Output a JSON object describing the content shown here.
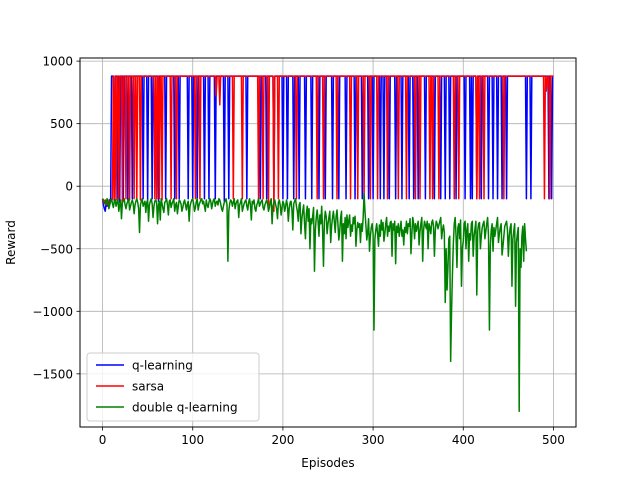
{
  "chart_data": {
    "type": "line",
    "title": "",
    "xlabel": "Episodes",
    "ylabel": "Reward",
    "xlim": [
      -25,
      525
    ],
    "ylim": [
      -1925,
      1025
    ],
    "xticks": [
      0,
      100,
      200,
      300,
      400,
      500
    ],
    "yticks": [
      -1500,
      -1000,
      -500,
      0,
      500,
      1000
    ],
    "xtick_labels": [
      "0",
      "100",
      "200",
      "300",
      "400",
      "500"
    ],
    "ytick_labels": [
      "−1500",
      "−1000",
      "−500",
      "0",
      "500",
      "1000"
    ],
    "grid": true,
    "legend_position": "lower-left",
    "series": [
      {
        "name": "q-learning",
        "color": "#0000ff",
        "base": 880,
        "low": -100,
        "episodes": 500,
        "start": [
          [
            0,
            -100
          ],
          [
            1,
            -150
          ],
          [
            2,
            -180
          ],
          [
            3,
            -200
          ],
          [
            4,
            -130
          ],
          [
            5,
            -160
          ],
          [
            6,
            -120
          ],
          [
            7,
            -140
          ],
          [
            8,
            -110
          ],
          [
            9,
            -100
          ]
        ],
        "dips": [
          [
            13,
            -120
          ],
          [
            17,
            -100
          ],
          [
            19,
            -130
          ],
          [
            23,
            -100
          ],
          [
            28,
            -110
          ],
          [
            33,
            -100
          ],
          [
            45,
            -100
          ],
          [
            50,
            -110
          ],
          [
            55,
            -100
          ],
          [
            62,
            -120
          ],
          [
            70,
            -100
          ],
          [
            80,
            -100
          ],
          [
            85,
            -100
          ],
          [
            95,
            -100
          ],
          [
            100,
            -100
          ],
          [
            105,
            -110
          ],
          [
            113,
            -100
          ],
          [
            118,
            -100
          ],
          [
            125,
            -100
          ],
          [
            135,
            -120
          ],
          [
            140,
            -100
          ],
          [
            160,
            -100
          ],
          [
            175,
            -100
          ],
          [
            182,
            -100
          ],
          [
            190,
            -100
          ],
          [
            200,
            -100
          ],
          [
            205,
            -100
          ],
          [
            212,
            -100
          ],
          [
            218,
            -100
          ],
          [
            225,
            -100
          ],
          [
            232,
            -100
          ],
          [
            240,
            -100
          ],
          [
            247,
            -100
          ],
          [
            255,
            -100
          ],
          [
            262,
            -100
          ],
          [
            270,
            -100
          ],
          [
            280,
            -100
          ],
          [
            288,
            -100
          ],
          [
            295,
            -100
          ],
          [
            300,
            -100
          ],
          [
            308,
            -100
          ],
          [
            312,
            -100
          ],
          [
            318,
            -100
          ],
          [
            325,
            -100
          ],
          [
            332,
            -100
          ],
          [
            340,
            -100
          ],
          [
            345,
            -100
          ],
          [
            350,
            -100
          ],
          [
            358,
            -100
          ],
          [
            368,
            -100
          ],
          [
            375,
            -100
          ],
          [
            380,
            -100
          ],
          [
            385,
            -100
          ],
          [
            392,
            -100
          ],
          [
            402,
            -100
          ],
          [
            408,
            -100
          ],
          [
            410,
            -100
          ],
          [
            415,
            -100
          ],
          [
            420,
            -100
          ],
          [
            428,
            -100
          ],
          [
            433,
            -100
          ],
          [
            438,
            -100
          ],
          [
            443,
            -100
          ],
          [
            448,
            -100
          ],
          [
            470,
            -100
          ],
          [
            475,
            -100
          ],
          [
            495,
            -100
          ],
          [
            498,
            -100
          ]
        ]
      },
      {
        "name": "sarsa",
        "color": "#ff0000",
        "base": 880,
        "low": -100,
        "episodes": 500,
        "start": [
          [
            0,
            -100
          ],
          [
            1,
            -120
          ],
          [
            2,
            -140
          ],
          [
            3,
            -110
          ],
          [
            4,
            -130
          ],
          [
            5,
            -110
          ],
          [
            6,
            -150
          ],
          [
            7,
            -120
          ],
          [
            8,
            -130
          ],
          [
            9,
            -110
          ],
          [
            10,
            -120
          ],
          [
            11,
            -100
          ]
        ],
        "dips": [
          [
            13,
            -100
          ],
          [
            15,
            -110
          ],
          [
            18,
            -100
          ],
          [
            22,
            -120
          ],
          [
            26,
            -100
          ],
          [
            30,
            -110
          ],
          [
            35,
            -100
          ],
          [
            38,
            -100
          ],
          [
            42,
            -110
          ],
          [
            58,
            -100
          ],
          [
            60,
            -100
          ],
          [
            63,
            -100
          ],
          [
            66,
            -110
          ],
          [
            76,
            -100
          ],
          [
            82,
            -100
          ],
          [
            103,
            -100
          ],
          [
            108,
            -100
          ],
          [
            126,
            720
          ],
          [
            130,
            650
          ],
          [
            145,
            -100
          ],
          [
            155,
            -100
          ],
          [
            173,
            -100
          ],
          [
            178,
            -100
          ],
          [
            184,
            -150
          ],
          [
            190,
            -200
          ],
          [
            195,
            -100
          ],
          [
            215,
            -100
          ],
          [
            238,
            -100
          ],
          [
            245,
            -100
          ],
          [
            260,
            -100
          ],
          [
            275,
            -100
          ],
          [
            283,
            -100
          ],
          [
            290,
            -100
          ],
          [
            297,
            -100
          ],
          [
            305,
            -100
          ],
          [
            316,
            -100
          ],
          [
            328,
            -100
          ],
          [
            337,
            -100
          ],
          [
            347,
            -100
          ],
          [
            352,
            -100
          ],
          [
            363,
            -100
          ],
          [
            366,
            -100
          ],
          [
            373,
            -100
          ],
          [
            390,
            -100
          ],
          [
            395,
            -100
          ],
          [
            415,
            -100
          ],
          [
            418,
            -100
          ],
          [
            423,
            -100
          ],
          [
            445,
            -100
          ],
          [
            490,
            -100
          ],
          [
            492,
            760
          ],
          [
            494,
            800
          ],
          [
            496,
            -100
          ]
        ]
      },
      {
        "name": "double q-learning",
        "color": "#008000",
        "values": [
          -100,
          -110,
          -130,
          -120,
          -150,
          -100,
          -110,
          -180,
          -150,
          -120,
          -100,
          -140,
          -170,
          -120,
          -110,
          -160,
          -130,
          -100,
          -200,
          -150,
          -110,
          -260,
          -130,
          -120,
          -100,
          -150,
          -180,
          -140,
          -120,
          -100,
          -190,
          -160,
          -130,
          -110,
          -140,
          -220,
          -150,
          -120,
          -100,
          -130,
          -180,
          -370,
          -150,
          -120,
          -100,
          -160,
          -140,
          -120,
          -210,
          -130,
          -110,
          -280,
          -150,
          -120,
          -100,
          -140,
          -250,
          -160,
          -120,
          -110,
          -130,
          -300,
          -150,
          -120,
          -270,
          -100,
          -140,
          -180,
          -210,
          -130,
          -120,
          -100,
          -150,
          -230,
          -120,
          -110,
          -170,
          -140,
          -120,
          -100,
          -200,
          -150,
          -130,
          -220,
          -160,
          -110,
          -120,
          -140,
          -200,
          -170,
          -130,
          -110,
          -150,
          -190,
          -140,
          -120,
          -280,
          -160,
          -130,
          -110,
          -100,
          -140,
          -200,
          -170,
          -120,
          -100,
          -190,
          -150,
          -130,
          -110,
          -100,
          -140,
          -120,
          -160,
          -200,
          -110,
          -150,
          -170,
          -130,
          -100,
          -120,
          -180,
          -140,
          -110,
          -100,
          -160,
          -130,
          -120,
          -150,
          -100,
          -110,
          -140,
          -180,
          -200,
          -160,
          -130,
          -120,
          -100,
          -150,
          -600,
          -200,
          -140,
          -110,
          -120,
          -160,
          -130,
          -100,
          -180,
          -140,
          -120,
          -110,
          -250,
          -150,
          -130,
          -100,
          -200,
          -170,
          -140,
          -120,
          -110,
          -160,
          -190,
          -130,
          -100,
          -150,
          -270,
          -120,
          -140,
          -110,
          -180,
          -200,
          -150,
          -130,
          -100,
          -160,
          -140,
          -120,
          -110,
          -170,
          -190,
          -150,
          -130,
          -110,
          -140,
          -200,
          -170,
          -120,
          -100,
          -300,
          -160,
          -130,
          -110,
          -150,
          -180,
          -260,
          -130,
          -110,
          -150,
          -230,
          -170,
          -120,
          -140,
          -200,
          -160,
          -110,
          -150,
          -280,
          -180,
          -130,
          -120,
          -190,
          -350,
          -140,
          -120,
          -100,
          -160,
          -200,
          -280,
          -150,
          -130,
          -380,
          -260,
          -200,
          -150,
          -300,
          -420,
          -220,
          -160,
          -280,
          -180,
          -500,
          -260,
          -300,
          -240,
          -170,
          -680,
          -350,
          -250,
          -190,
          -280,
          -400,
          -230,
          -300,
          -160,
          -350,
          -640,
          -280,
          -200,
          -240,
          -380,
          -300,
          -250,
          -200,
          -450,
          -320,
          -250,
          -200,
          -280,
          -370,
          -240,
          -190,
          -300,
          -430,
          -360,
          -250,
          -200,
          -600,
          -300,
          -380,
          -250,
          -420,
          -230,
          -330,
          -280,
          -230,
          -400,
          -310,
          -360,
          -250,
          -300,
          -240,
          -480,
          -350,
          -290,
          -330,
          -300,
          -450,
          -300,
          -360,
          -250,
          -60,
          -200,
          -310,
          -430,
          -370,
          -260,
          -520,
          -400,
          -330,
          -300,
          -380,
          -1150,
          -420,
          -350,
          -300,
          -380,
          -480,
          -310,
          -400,
          -270,
          -350,
          -290,
          -440,
          -380,
          -300,
          -250,
          -400,
          -320,
          -360,
          -290,
          -280,
          -560,
          -300,
          -350,
          -280,
          -620,
          -320,
          -370,
          -300,
          -400,
          -340,
          -280,
          -400,
          -350,
          -470,
          -330,
          -370,
          -280,
          -380,
          -300,
          -320,
          -260,
          -540,
          -380,
          -250,
          -300,
          -420,
          -300,
          -360,
          -320,
          -280,
          -470,
          -360,
          -300,
          -250,
          -600,
          -350,
          -280,
          -310,
          -340,
          -280,
          -500,
          -300,
          -330,
          -380,
          -290,
          -270,
          -320,
          -560,
          -350,
          -280,
          -300,
          -340,
          -310,
          -280,
          -250,
          -420,
          -350,
          -310,
          -370,
          -930,
          -500,
          -830,
          -650,
          -420,
          -400,
          -1400,
          -1000,
          -700,
          -460,
          -300,
          -250,
          -400,
          -650,
          -330,
          -300,
          -420,
          -270,
          -800,
          -500,
          -440,
          -300,
          -280,
          -500,
          -350,
          -300,
          -600,
          -380,
          -430,
          -300,
          -280,
          -560,
          -400,
          -340,
          -280,
          -870,
          -360,
          -300,
          -290,
          -500,
          -400,
          -330,
          -300,
          -280,
          -420,
          -360,
          -300,
          -250,
          -400,
          -1150,
          -480,
          -350,
          -300,
          -520,
          -330,
          -400,
          -350,
          -300,
          -250,
          -450,
          -380,
          -330,
          -300,
          -550,
          -480,
          -400,
          -320,
          -300,
          -280,
          -350,
          -560,
          -400,
          -330,
          -300,
          -800,
          -420,
          -360,
          -300,
          -960,
          -450,
          -380,
          -330,
          -1800,
          -500,
          -650,
          -400,
          -320,
          -600,
          -300,
          -420,
          -520
        ]
      }
    ]
  }
}
